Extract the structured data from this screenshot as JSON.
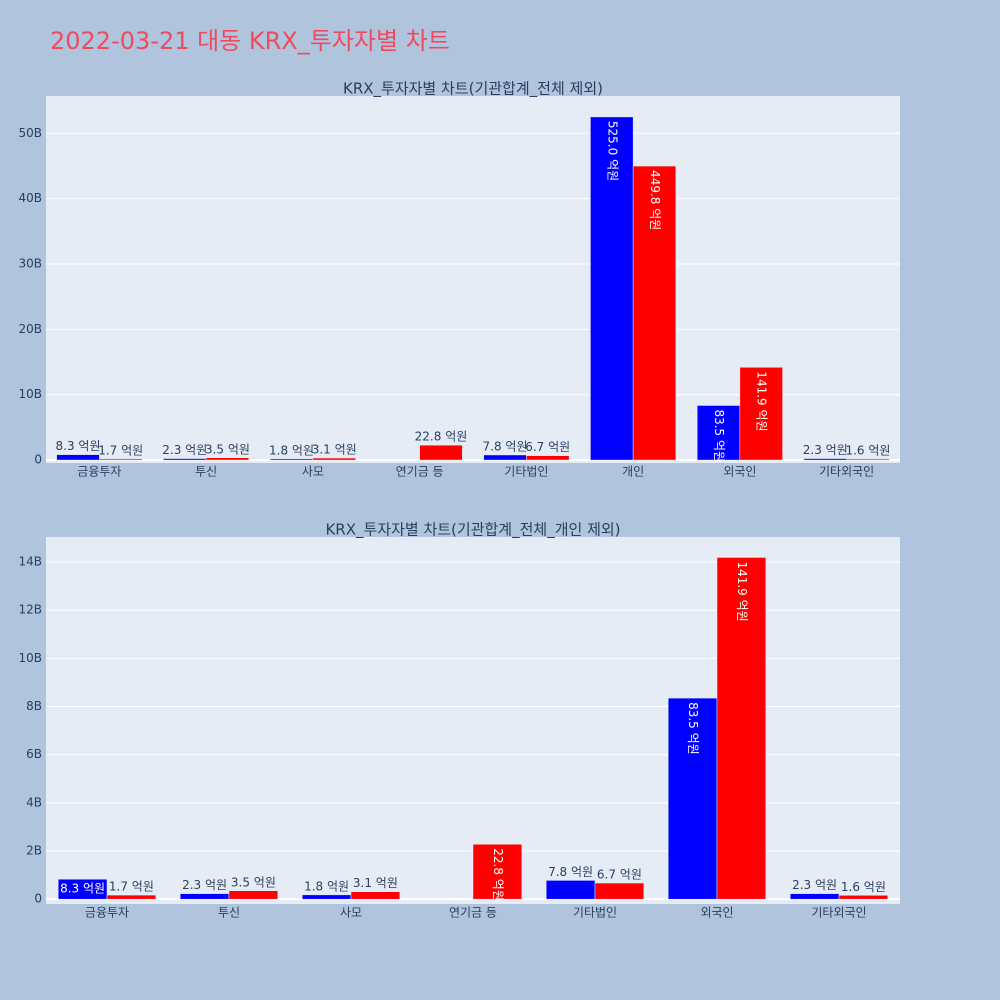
{
  "title": "2022-03-21 대동 KRX_투자자별 차트",
  "chart_data": [
    {
      "type": "bar",
      "title": "KRX_투자자별 차트(기관합계_전체 제외)",
      "categories": [
        "금융투자",
        "투신",
        "사모",
        "연기금 등",
        "기타법인",
        "개인",
        "외국인",
        "기타외국인"
      ],
      "series": [
        {
          "color": "#0000ff",
          "values": [
            830000000,
            230000000,
            180000000,
            null,
            780000000,
            52500000000,
            8350000000,
            230000000
          ],
          "value_labels": [
            "8.3 억원",
            "2.3 억원",
            "1.8 억원",
            null,
            "7.8 억원",
            "525.0 억원",
            "83.5 억원",
            "2.3 억원"
          ]
        },
        {
          "color": "#ff0000",
          "values": [
            170000000,
            350000000,
            310000000,
            2280000000,
            670000000,
            44980000000,
            14190000000,
            160000000
          ],
          "value_labels": [
            "1.7 억원",
            "3.5 억원",
            "3.1 억원",
            "22.8 억원",
            "6.7 억원",
            "449.8 억원",
            "141.9 억원",
            "1.6 억원"
          ]
        }
      ],
      "ylim": [
        -450000000,
        55700000000
      ],
      "yticks": [
        0,
        {
          "value": 10000000000,
          "label": "10B"
        },
        {
          "value": 20000000000,
          "label": "20B"
        },
        {
          "value": 30000000000,
          "label": "30B"
        },
        {
          "value": 40000000000,
          "label": "40B"
        },
        {
          "value": 50000000000,
          "label": "50B"
        }
      ],
      "grid": true
    },
    {
      "type": "bar",
      "title": "KRX_투자자별 차트(기관합계_전체_개인 제외)",
      "categories": [
        "금융투자",
        "투신",
        "사모",
        "연기금 등",
        "기타법인",
        "외국인",
        "기타외국인"
      ],
      "series": [
        {
          "color": "#0000ff",
          "values": [
            830000000,
            230000000,
            180000000,
            null,
            780000000,
            8350000000,
            230000000
          ],
          "value_labels": [
            "8.3 억원",
            "2.3 억원",
            "1.8 억원",
            null,
            "7.8 억원",
            "83.5 억원",
            "2.3 억원"
          ]
        },
        {
          "color": "#ff0000",
          "values": [
            170000000,
            350000000,
            310000000,
            2280000000,
            670000000,
            14190000000,
            160000000
          ],
          "value_labels": [
            "1.7 억원",
            "3.5 억원",
            "3.1 억원",
            "22.8 억원",
            "6.7 억원",
            "141.9 억원",
            "1.6 억원"
          ]
        }
      ],
      "ylim": [
        -200000000,
        15040000000
      ],
      "yticks": [
        0,
        {
          "value": 2000000000,
          "label": "2B"
        },
        {
          "value": 4000000000,
          "label": "4B"
        },
        {
          "value": 6000000000,
          "label": "6B"
        },
        {
          "value": 8000000000,
          "label": "8B"
        },
        {
          "value": 10000000000,
          "label": "10B"
        },
        {
          "value": 12000000000,
          "label": "12B"
        },
        {
          "value": 14000000000,
          "label": "14B"
        }
      ],
      "grid": true
    }
  ]
}
